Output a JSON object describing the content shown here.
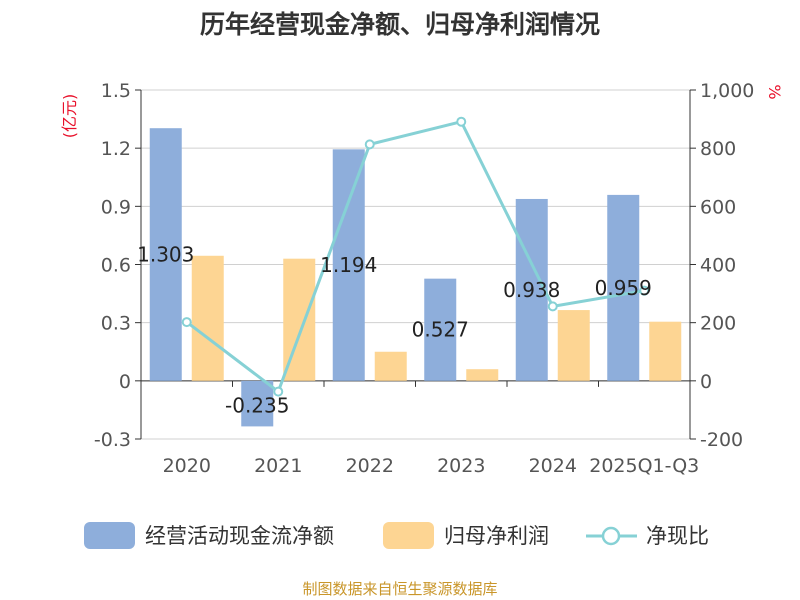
{
  "chart_data": {
    "type": "bar",
    "title": "历年经营现金净额、归母净利润情况",
    "categories": [
      "2020",
      "2021",
      "2022",
      "2023",
      "2024",
      "2025Q1-Q3"
    ],
    "left_axis": {
      "unit": "(亿元)",
      "ylim": [
        -0.3,
        1.5
      ],
      "ticks": [
        "-0.3",
        "0",
        "0.3",
        "0.6",
        "0.9",
        "1.2",
        "1.5"
      ]
    },
    "right_axis": {
      "unit": "%",
      "ylim": [
        -200,
        1000
      ],
      "ticks": [
        "-200",
        "0",
        "200",
        "400",
        "600",
        "800",
        "1,000"
      ]
    },
    "series": [
      {
        "name": "经营活动现金流净额",
        "kind": "bar",
        "axis": "left",
        "color": "#8eaedb",
        "values": [
          1.303,
          -0.235,
          1.194,
          0.527,
          0.938,
          0.959
        ],
        "labels": [
          "1.303",
          "-0.235",
          "1.194",
          "0.527",
          "0.938",
          "0.959"
        ]
      },
      {
        "name": "归母净利润",
        "kind": "bar",
        "axis": "left",
        "color": "#fdd593",
        "values": [
          0.645,
          0.63,
          0.15,
          0.06,
          0.365,
          0.305
        ]
      },
      {
        "name": "净现比",
        "kind": "line",
        "axis": "right",
        "color": "#86d1d5",
        "values": [
          202,
          -37,
          813,
          891,
          256,
          310
        ]
      }
    ],
    "grid": true,
    "legend": "bottom"
  },
  "footer": {
    "source": "制图数据来自恒生聚源数据库"
  }
}
